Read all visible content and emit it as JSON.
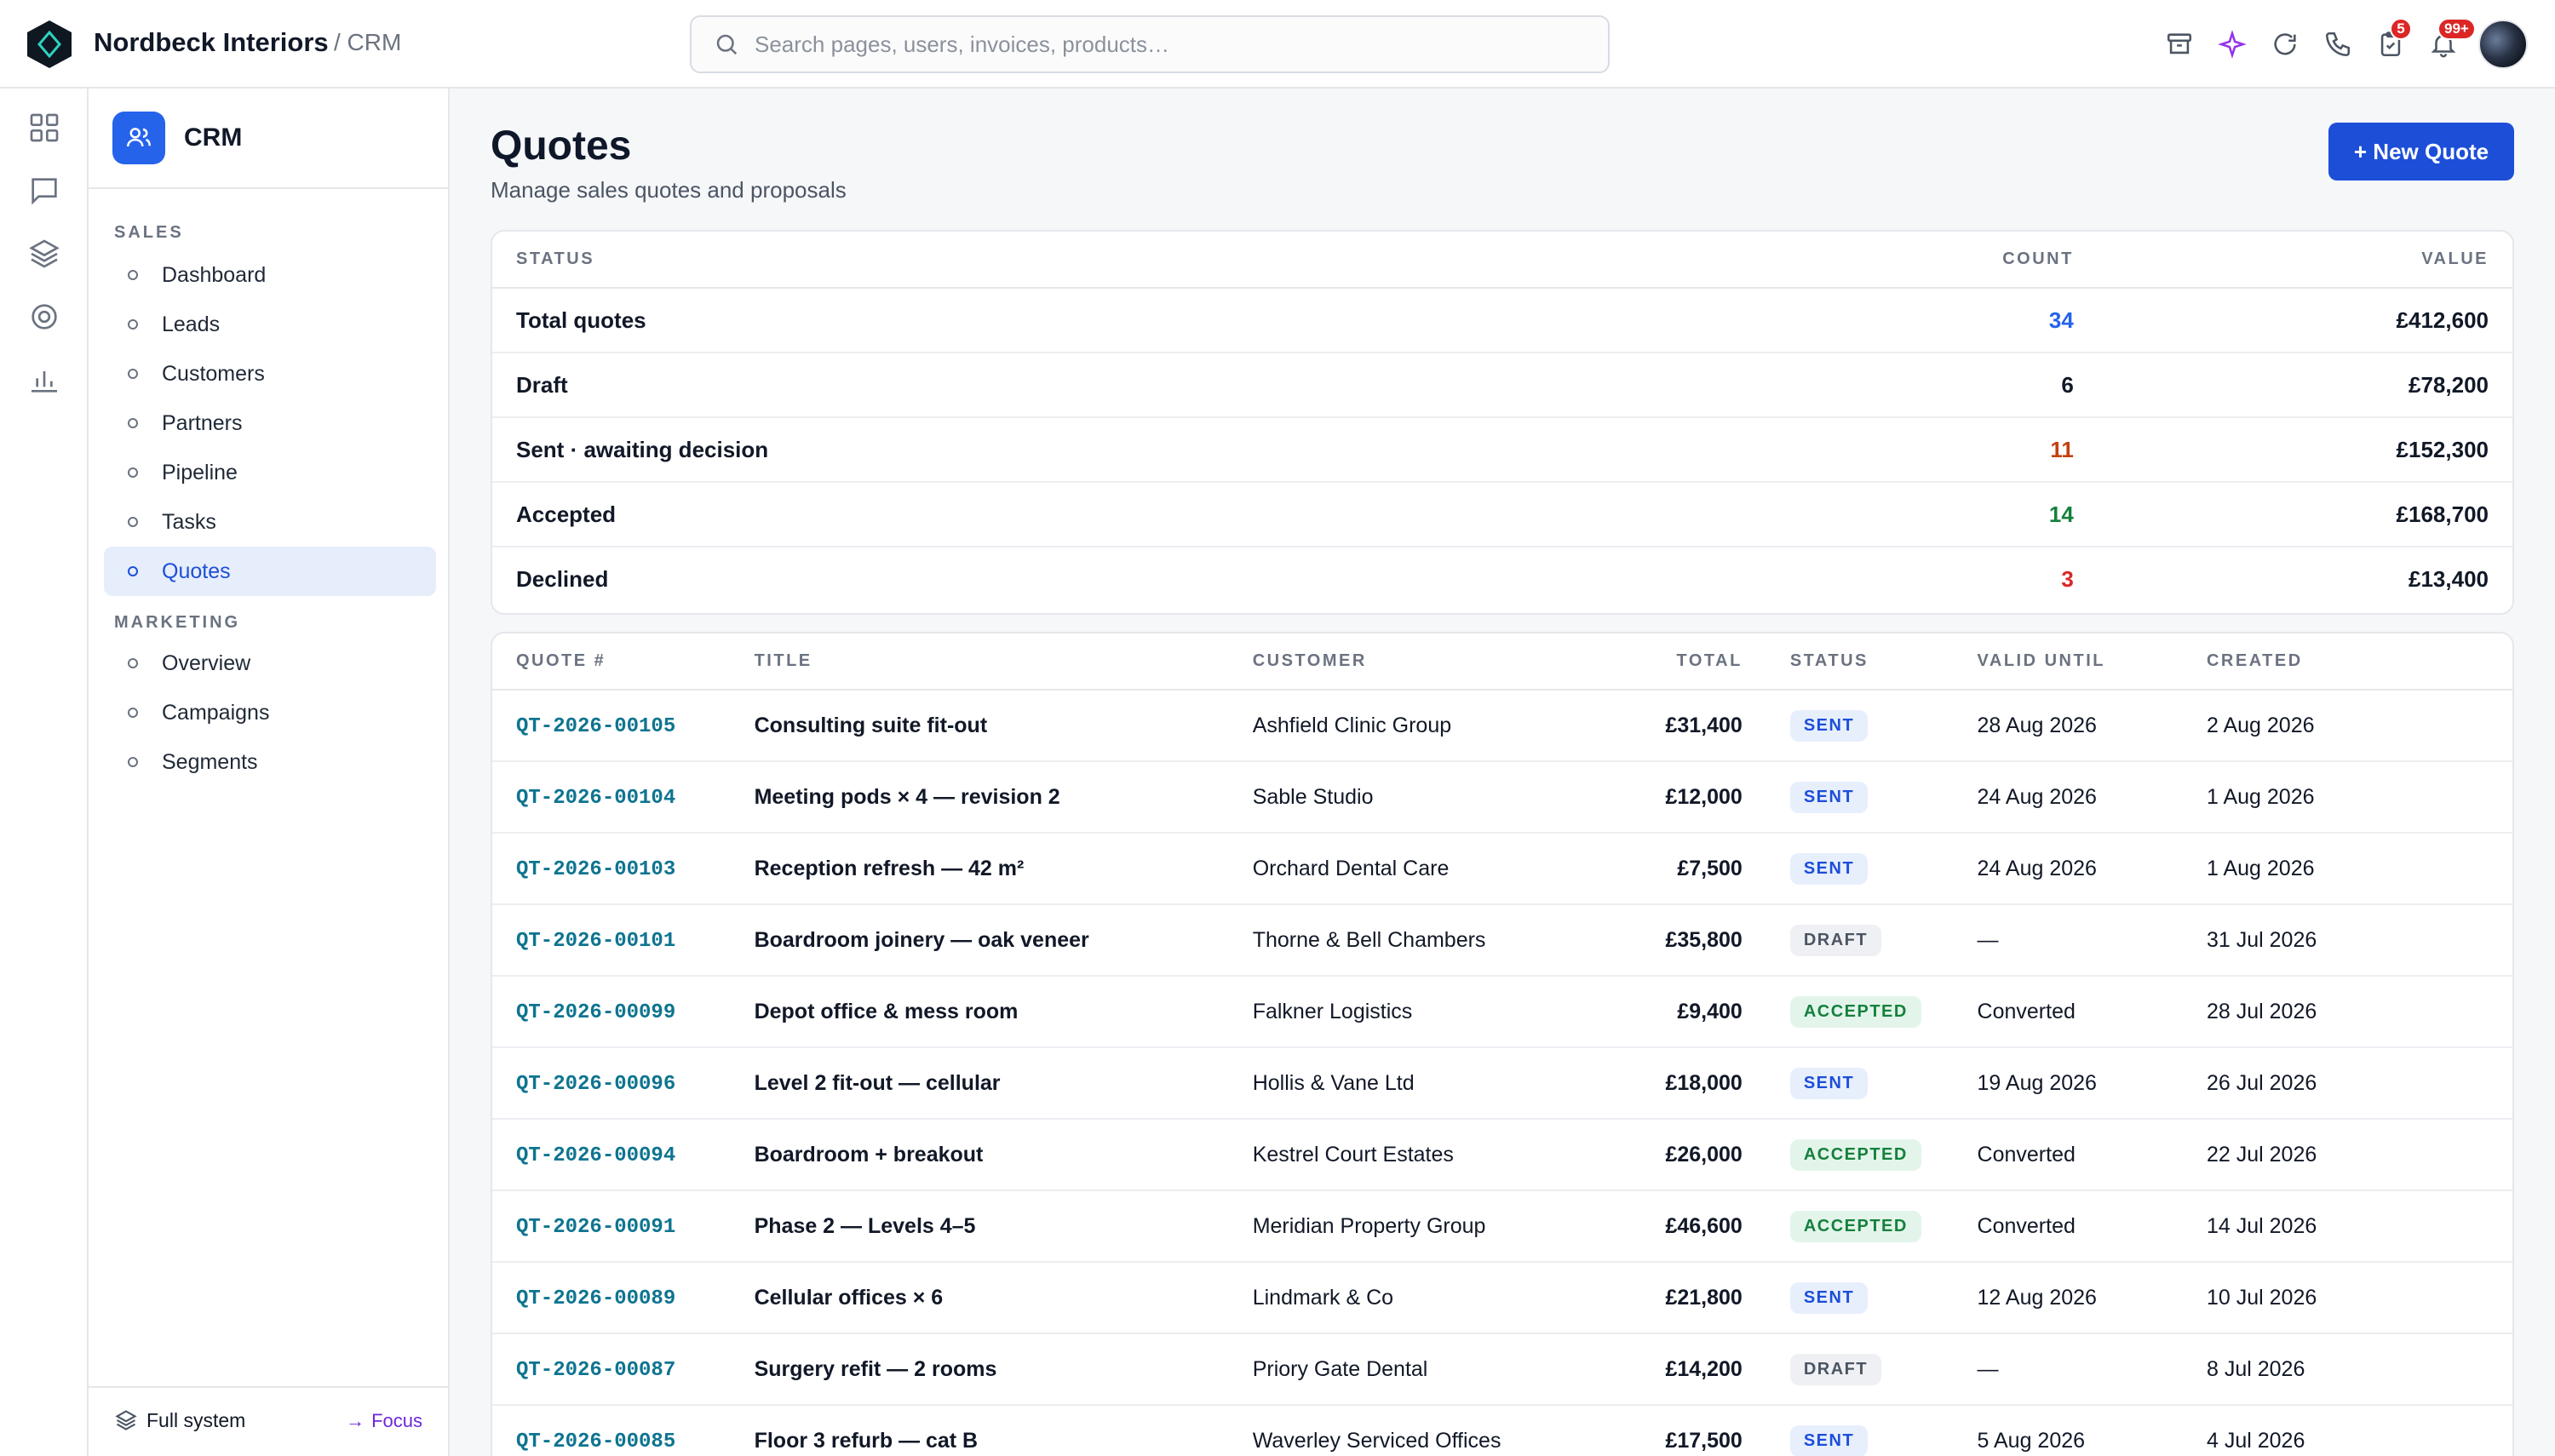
{
  "topbar": {
    "brand": "Nordbeck Interiors",
    "crumb": "/ CRM",
    "search_placeholder": "Search pages, users, invoices, products…",
    "icons": [
      "archive-icon",
      "sparkle-icon",
      "refresh-icon",
      "phone-icon",
      "clipboard-icon",
      "bell-icon"
    ],
    "clipboard_badge": "5",
    "bell_badge": "99+",
    "colors": {
      "badge": "#dc2626",
      "sparkle": "#9333ea"
    }
  },
  "rail": {
    "icons": [
      "grid-icon",
      "chat-icon",
      "layers-icon",
      "target-icon",
      "bar-chart-icon"
    ]
  },
  "sidebar": {
    "app_name": "CRM",
    "sections": [
      {
        "label": "SALES",
        "items": [
          "Dashboard",
          "Leads",
          "Customers",
          "Partners",
          "Pipeline",
          "Tasks",
          "Quotes"
        ]
      },
      {
        "label": "MARKETING",
        "items": [
          "Overview",
          "Campaigns",
          "Segments"
        ]
      }
    ],
    "active_item": "Quotes",
    "footer": {
      "full_system": "Full system",
      "focus": "Focus"
    },
    "accent": "#2563eb"
  },
  "page": {
    "title": "Quotes",
    "subtitle": "Manage sales quotes and proposals",
    "new_button": "+ New Quote"
  },
  "summary": {
    "headers": [
      "STATUS",
      "COUNT",
      "VALUE"
    ],
    "rows": [
      {
        "status": "Total quotes",
        "count": "34",
        "value": "£412,600",
        "color": "blue"
      },
      {
        "status": "Draft",
        "count": "6",
        "value": "£78,200",
        "color": "default"
      },
      {
        "status": "Sent · awaiting decision",
        "count": "11",
        "value": "£152,300",
        "color": "orange"
      },
      {
        "status": "Accepted",
        "count": "14",
        "value": "£168,700",
        "color": "green"
      },
      {
        "status": "Declined",
        "count": "3",
        "value": "£13,400",
        "color": "red"
      }
    ]
  },
  "quotes": {
    "headers": [
      "QUOTE #",
      "TITLE",
      "CUSTOMER",
      "TOTAL",
      "STATUS",
      "VALID UNTIL",
      "CREATED"
    ],
    "rows": [
      {
        "id": "QT-2026-00105",
        "title": "Consulting suite fit-out",
        "customer": "Ashfield Clinic Group",
        "total": "£31,400",
        "status": "SENT",
        "valid_until": "28 Aug 2026",
        "created": "2 Aug 2026"
      },
      {
        "id": "QT-2026-00104",
        "title": "Meeting pods × 4 — revision 2",
        "customer": "Sable Studio",
        "total": "£12,000",
        "status": "SENT",
        "valid_until": "24 Aug 2026",
        "created": "1 Aug 2026"
      },
      {
        "id": "QT-2026-00103",
        "title": "Reception refresh — 42 m²",
        "customer": "Orchard Dental Care",
        "total": "£7,500",
        "status": "SENT",
        "valid_until": "24 Aug 2026",
        "created": "1 Aug 2026"
      },
      {
        "id": "QT-2026-00101",
        "title": "Boardroom joinery — oak veneer",
        "customer": "Thorne & Bell Chambers",
        "total": "£35,800",
        "status": "DRAFT",
        "valid_until": "—",
        "created": "31 Jul 2026"
      },
      {
        "id": "QT-2026-00099",
        "title": "Depot office & mess room",
        "customer": "Falkner Logistics",
        "total": "£9,400",
        "status": "ACCEPTED",
        "valid_until": "Converted",
        "created": "28 Jul 2026"
      },
      {
        "id": "QT-2026-00096",
        "title": "Level 2 fit-out — cellular",
        "customer": "Hollis & Vane Ltd",
        "total": "£18,000",
        "status": "SENT",
        "valid_until": "19 Aug 2026",
        "created": "26 Jul 2026"
      },
      {
        "id": "QT-2026-00094",
        "title": "Boardroom + breakout",
        "customer": "Kestrel Court Estates",
        "total": "£26,000",
        "status": "ACCEPTED",
        "valid_until": "Converted",
        "created": "22 Jul 2026"
      },
      {
        "id": "QT-2026-00091",
        "title": "Phase 2 — Levels 4–5",
        "customer": "Meridian Property Group",
        "total": "£46,600",
        "status": "ACCEPTED",
        "valid_until": "Converted",
        "created": "14 Jul 2026"
      },
      {
        "id": "QT-2026-00089",
        "title": "Cellular offices × 6",
        "customer": "Lindmark & Co",
        "total": "£21,800",
        "status": "SENT",
        "valid_until": "12 Aug 2026",
        "created": "10 Jul 2026"
      },
      {
        "id": "QT-2026-00087",
        "title": "Surgery refit — 2 rooms",
        "customer": "Priory Gate Dental",
        "total": "£14,200",
        "status": "DRAFT",
        "valid_until": "—",
        "created": "8 Jul 2026"
      },
      {
        "id": "QT-2026-00085",
        "title": "Floor 3 refurb — cat B",
        "customer": "Waverley Serviced Offices",
        "total": "£17,500",
        "status": "SENT",
        "valid_until": "5 Aug 2026",
        "created": "4 Jul 2026"
      }
    ]
  }
}
